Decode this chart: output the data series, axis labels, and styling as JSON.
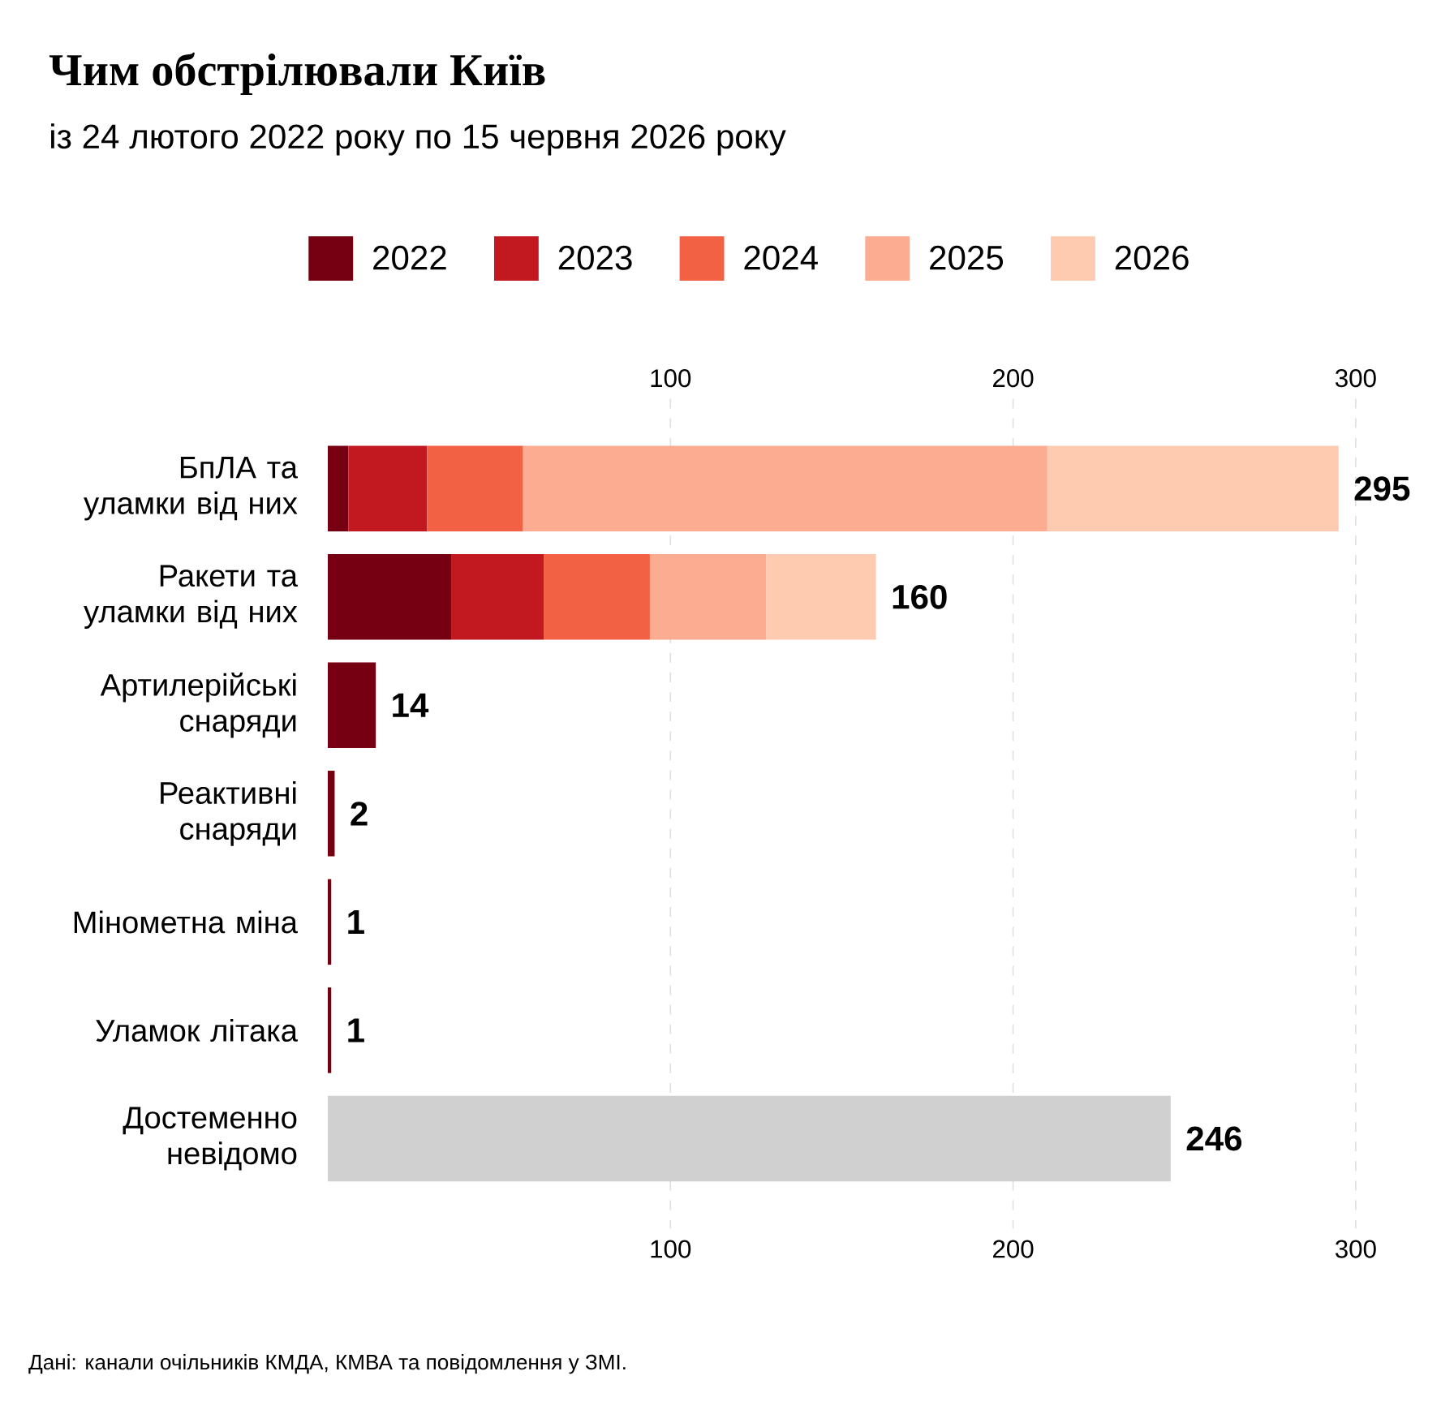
{
  "chart_data": {
    "type": "bar",
    "orientation": "horizontal",
    "stacked": true,
    "title": "Чим обстрілювали Київ",
    "subtitle": "із 24 лютого 2022 року по 15 червня 2026 року",
    "categories": [
      "БпЛА та уламки від них",
      "Ракети та уламки від них",
      "Артилерійські снаряди",
      "Реактивні снаряди",
      "Мінометна міна",
      "Уламок літака",
      "Достеменно невідомо"
    ],
    "series": [
      {
        "name": "2022",
        "color": "#760011",
        "values": [
          6,
          36,
          14,
          2,
          1,
          1,
          null
        ]
      },
      {
        "name": "2023",
        "color": "#c2181f",
        "values": [
          23,
          27,
          null,
          null,
          null,
          null,
          null
        ]
      },
      {
        "name": "2024",
        "color": "#f26144",
        "values": [
          28,
          31,
          null,
          null,
          null,
          null,
          null
        ]
      },
      {
        "name": "2025",
        "color": "#fbac91",
        "values": [
          153,
          34,
          null,
          null,
          null,
          null,
          null
        ]
      },
      {
        "name": "2026",
        "color": "#fecbb0",
        "values": [
          85,
          32,
          null,
          null,
          null,
          null,
          null
        ]
      },
      {
        "color": "#d0d0d0",
        "values": [
          null,
          null,
          null,
          null,
          null,
          null,
          246
        ]
      }
    ],
    "totals": [
      "295",
      "160",
      "14",
      "2",
      "1",
      "1",
      "246"
    ],
    "xlim": [
      0,
      300
    ],
    "xticks": [
      100,
      200,
      300
    ],
    "x2lim": [
      0,
      300
    ],
    "x2ticks": [
      100,
      200,
      300
    ],
    "grid": "x",
    "legend": "top",
    "annotations": [
      "Дані: канали очільників КМДА, КМВА та повідомлення у ЗМІ."
    ]
  }
}
